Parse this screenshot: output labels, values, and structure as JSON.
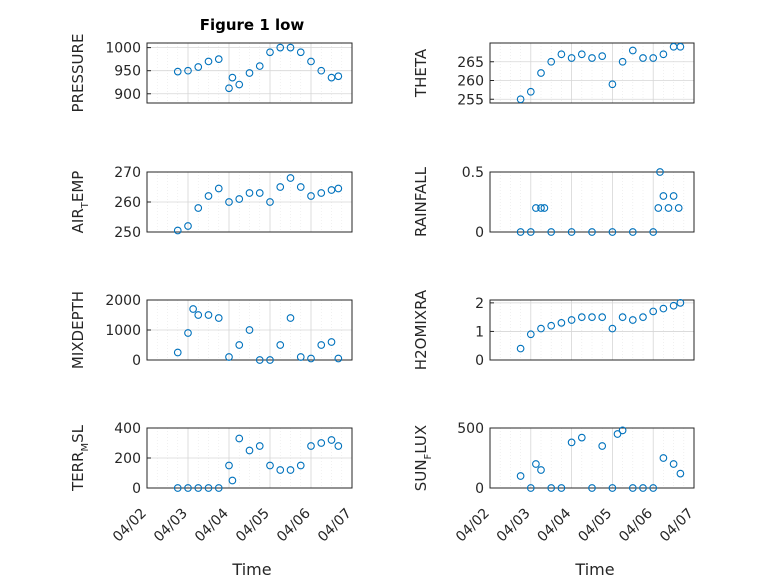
{
  "figure_title": "Figure 1 low",
  "colors": {
    "marker": "#0072BD",
    "axes": "#262626",
    "grid": "#d6d6d6"
  },
  "chart_data": [
    {
      "type": "scatter",
      "ylabel": "PRESSURE",
      "ylim": [
        880,
        1010
      ],
      "yticks": [
        900,
        950,
        1000
      ],
      "grid": true,
      "x": [
        "2024-04-02 18:00",
        "2024-04-03 00:00",
        "2024-04-03 06:00",
        "2024-04-03 12:00",
        "2024-04-03 18:00",
        "2024-04-04 00:00",
        "2024-04-04 02:00",
        "2024-04-04 06:00",
        "2024-04-04 12:00",
        "2024-04-04 18:00",
        "2024-04-05 00:00",
        "2024-04-05 06:00",
        "2024-04-05 12:00",
        "2024-04-05 18:00",
        "2024-04-06 00:00",
        "2024-04-06 06:00",
        "2024-04-06 12:00",
        "2024-04-06 16:00"
      ],
      "y": [
        948,
        950,
        958,
        970,
        975,
        912,
        935,
        920,
        945,
        960,
        990,
        1000,
        1000,
        990,
        970,
        950,
        935,
        938
      ]
    },
    {
      "type": "scatter",
      "ylabel": "THETA",
      "ylim": [
        254,
        270
      ],
      "yticks": [
        255,
        260,
        265
      ],
      "grid": true,
      "x": [
        "2024-04-02 18:00",
        "2024-04-03 00:00",
        "2024-04-03 06:00",
        "2024-04-03 12:00",
        "2024-04-03 18:00",
        "2024-04-04 00:00",
        "2024-04-04 06:00",
        "2024-04-04 12:00",
        "2024-04-04 18:00",
        "2024-04-05 00:00",
        "2024-04-05 06:00",
        "2024-04-05 12:00",
        "2024-04-05 18:00",
        "2024-04-06 00:00",
        "2024-04-06 06:00",
        "2024-04-06 12:00",
        "2024-04-06 16:00"
      ],
      "y": [
        255,
        257,
        262,
        265,
        267,
        266,
        267,
        266,
        266.5,
        259,
        265,
        268,
        266,
        266,
        267,
        269,
        269
      ]
    },
    {
      "type": "scatter",
      "ylabel": "AIR_TEMP",
      "ylim": [
        250,
        270
      ],
      "yticks": [
        250,
        260,
        270
      ],
      "grid": true,
      "x": [
        "2024-04-02 18:00",
        "2024-04-03 00:00",
        "2024-04-03 06:00",
        "2024-04-03 12:00",
        "2024-04-03 18:00",
        "2024-04-04 00:00",
        "2024-04-04 06:00",
        "2024-04-04 12:00",
        "2024-04-04 18:00",
        "2024-04-05 00:00",
        "2024-04-05 06:00",
        "2024-04-05 12:00",
        "2024-04-05 18:00",
        "2024-04-06 00:00",
        "2024-04-06 06:00",
        "2024-04-06 12:00",
        "2024-04-06 16:00"
      ],
      "y": [
        250.5,
        252,
        258,
        262,
        264.5,
        260,
        261,
        263,
        263,
        260,
        265,
        268,
        265,
        262,
        263,
        264,
        264.5
      ]
    },
    {
      "type": "scatter",
      "ylabel": "RAINFALL",
      "ylim": [
        0,
        0.5
      ],
      "yticks": [
        0,
        0.5
      ],
      "grid": true,
      "x": [
        "2024-04-02 18:00",
        "2024-04-03 00:00",
        "2024-04-03 03:00",
        "2024-04-03 06:00",
        "2024-04-03 08:00",
        "2024-04-03 12:00",
        "2024-04-04 00:00",
        "2024-04-04 12:00",
        "2024-04-05 00:00",
        "2024-04-05 12:00",
        "2024-04-06 00:00",
        "2024-04-06 03:00",
        "2024-04-06 04:00",
        "2024-04-06 06:00",
        "2024-04-06 09:00",
        "2024-04-06 12:00",
        "2024-04-06 15:00"
      ],
      "y": [
        0,
        0,
        0.2,
        0.2,
        0.2,
        0,
        0,
        0,
        0,
        0,
        0,
        0.2,
        0.5,
        0.3,
        0.2,
        0.3,
        0.2
      ]
    },
    {
      "type": "scatter",
      "ylabel": "MIXDEPTH",
      "ylim": [
        0,
        2000
      ],
      "yticks": [
        0,
        1000,
        2000
      ],
      "grid": true,
      "x": [
        "2024-04-02 18:00",
        "2024-04-03 00:00",
        "2024-04-03 03:00",
        "2024-04-03 06:00",
        "2024-04-03 12:00",
        "2024-04-03 18:00",
        "2024-04-04 00:00",
        "2024-04-04 06:00",
        "2024-04-04 12:00",
        "2024-04-04 18:00",
        "2024-04-05 00:00",
        "2024-04-05 06:00",
        "2024-04-05 12:00",
        "2024-04-05 18:00",
        "2024-04-06 00:00",
        "2024-04-06 06:00",
        "2024-04-06 12:00",
        "2024-04-06 16:00"
      ],
      "y": [
        250,
        900,
        1700,
        1500,
        1500,
        1400,
        100,
        500,
        1000,
        0,
        0,
        500,
        1400,
        100,
        50,
        500,
        600,
        50
      ]
    },
    {
      "type": "scatter",
      "ylabel": "H2OMIXRA",
      "ylim": [
        0,
        2.1
      ],
      "yticks": [
        0,
        1,
        2
      ],
      "grid": true,
      "x": [
        "2024-04-02 18:00",
        "2024-04-03 00:00",
        "2024-04-03 06:00",
        "2024-04-03 12:00",
        "2024-04-03 18:00",
        "2024-04-04 00:00",
        "2024-04-04 06:00",
        "2024-04-04 12:00",
        "2024-04-04 18:00",
        "2024-04-05 00:00",
        "2024-04-05 06:00",
        "2024-04-05 12:00",
        "2024-04-05 18:00",
        "2024-04-06 00:00",
        "2024-04-06 06:00",
        "2024-04-06 12:00",
        "2024-04-06 16:00"
      ],
      "y": [
        0.4,
        0.9,
        1.1,
        1.2,
        1.3,
        1.4,
        1.5,
        1.5,
        1.5,
        1.1,
        1.5,
        1.4,
        1.5,
        1.7,
        1.8,
        1.9,
        2.0
      ]
    },
    {
      "type": "scatter",
      "ylabel": "TERR_MSL",
      "ylim": [
        0,
        400
      ],
      "yticks": [
        0,
        200,
        400
      ],
      "grid": true,
      "x": [
        "2024-04-02 18:00",
        "2024-04-03 00:00",
        "2024-04-03 06:00",
        "2024-04-03 12:00",
        "2024-04-03 18:00",
        "2024-04-04 00:00",
        "2024-04-04 02:00",
        "2024-04-04 06:00",
        "2024-04-04 12:00",
        "2024-04-04 18:00",
        "2024-04-05 00:00",
        "2024-04-05 06:00",
        "2024-04-05 12:00",
        "2024-04-05 18:00",
        "2024-04-06 00:00",
        "2024-04-06 06:00",
        "2024-04-06 12:00",
        "2024-04-06 16:00"
      ],
      "y": [
        0,
        0,
        0,
        0,
        0,
        150,
        50,
        330,
        250,
        280,
        150,
        120,
        120,
        150,
        280,
        300,
        320,
        280
      ]
    },
    {
      "type": "scatter",
      "ylabel": "SUN_FLUX",
      "ylim": [
        0,
        500
      ],
      "yticks": [
        0,
        500
      ],
      "grid": true,
      "x": [
        "2024-04-02 18:00",
        "2024-04-03 00:00",
        "2024-04-03 03:00",
        "2024-04-03 06:00",
        "2024-04-03 12:00",
        "2024-04-03 18:00",
        "2024-04-04 00:00",
        "2024-04-04 06:00",
        "2024-04-04 12:00",
        "2024-04-04 18:00",
        "2024-04-05 00:00",
        "2024-04-05 03:00",
        "2024-04-05 06:00",
        "2024-04-05 12:00",
        "2024-04-05 18:00",
        "2024-04-06 00:00",
        "2024-04-06 06:00",
        "2024-04-06 12:00",
        "2024-04-06 16:00"
      ],
      "y": [
        100,
        0,
        200,
        150,
        0,
        0,
        380,
        420,
        0,
        350,
        0,
        450,
        480,
        0,
        0,
        0,
        250,
        200,
        120
      ]
    }
  ],
  "xticks": [
    "04/02",
    "04/03",
    "04/04",
    "04/05",
    "04/06",
    "04/07"
  ],
  "xlabel": "Time"
}
